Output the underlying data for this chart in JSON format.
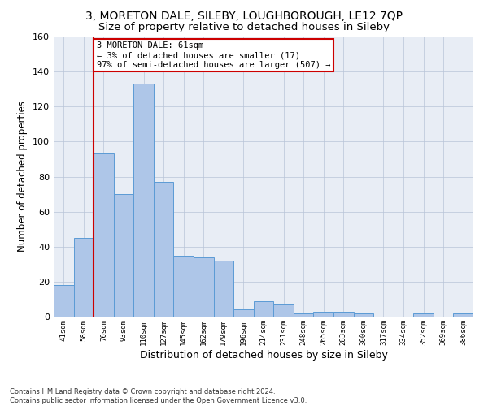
{
  "title": "3, MORETON DALE, SILEBY, LOUGHBOROUGH, LE12 7QP",
  "subtitle": "Size of property relative to detached houses in Sileby",
  "xlabel": "Distribution of detached houses by size in Sileby",
  "ylabel": "Number of detached properties",
  "bar_labels": [
    "41sqm",
    "58sqm",
    "76sqm",
    "93sqm",
    "110sqm",
    "127sqm",
    "145sqm",
    "162sqm",
    "179sqm",
    "196sqm",
    "214sqm",
    "231sqm",
    "248sqm",
    "265sqm",
    "283sqm",
    "300sqm",
    "317sqm",
    "334sqm",
    "352sqm",
    "369sqm",
    "386sqm"
  ],
  "bar_values": [
    18,
    45,
    93,
    70,
    133,
    77,
    35,
    34,
    32,
    4,
    9,
    7,
    2,
    3,
    3,
    2,
    0,
    0,
    2,
    0,
    2
  ],
  "bar_color": "#aec6e8",
  "bar_edge_color": "#5b9bd5",
  "vline_x": 1.5,
  "vline_color": "#cc0000",
  "annotation_text": "3 MORETON DALE: 61sqm\n← 3% of detached houses are smaller (17)\n97% of semi-detached houses are larger (507) →",
  "annotation_box_color": "#cc0000",
  "ylim": [
    0,
    160
  ],
  "yticks": [
    0,
    20,
    40,
    60,
    80,
    100,
    120,
    140,
    160
  ],
  "grid_color": "#b8c4d8",
  "bg_color": "#e8edf5",
  "footer": "Contains HM Land Registry data © Crown copyright and database right 2024.\nContains public sector information licensed under the Open Government Licence v3.0.",
  "title_fontsize": 10,
  "subtitle_fontsize": 9.5,
  "xlabel_fontsize": 9,
  "ylabel_fontsize": 8.5,
  "annotation_fontsize": 7.5,
  "tick_fontsize": 6.5,
  "footer_fontsize": 6
}
